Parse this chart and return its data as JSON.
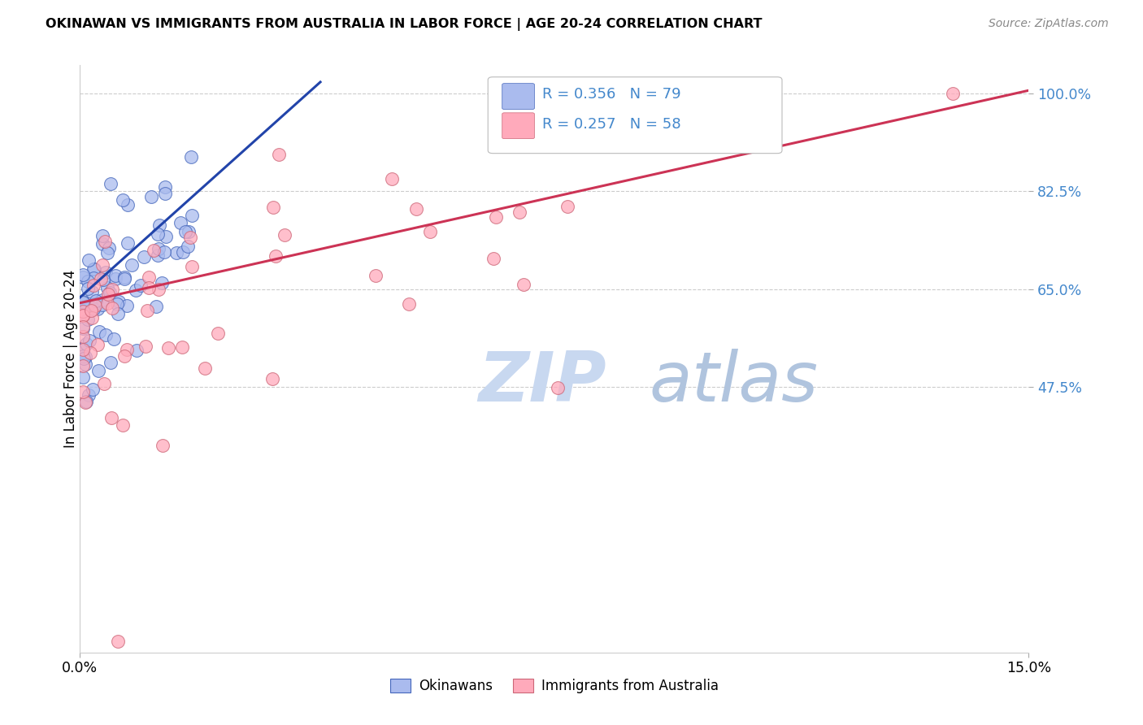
{
  "title": "OKINAWAN VS IMMIGRANTS FROM AUSTRALIA IN LABOR FORCE | AGE 20-24 CORRELATION CHART",
  "source": "Source: ZipAtlas.com",
  "ylabel": "In Labor Force | Age 20-24",
  "xlim": [
    0.0,
    0.15
  ],
  "ylim": [
    0.0,
    1.05
  ],
  "legend_r1": "R = 0.356",
  "legend_n1": "N = 79",
  "legend_r2": "R = 0.257",
  "legend_n2": "N = 58",
  "color_blue_fill": "#AABBEE",
  "color_blue_edge": "#4466BB",
  "color_pink_fill": "#FFAABB",
  "color_pink_edge": "#CC6677",
  "color_blue_line": "#2244AA",
  "color_pink_line": "#CC3355",
  "color_right_axis": "#4488CC",
  "ytick_vals": [
    0.475,
    0.65,
    0.825,
    1.0
  ],
  "ytick_labels": [
    "47.5%",
    "65.0%",
    "82.5%",
    "100.0%"
  ],
  "xtick_vals": [
    0.0,
    0.15
  ],
  "xtick_labels": [
    "0.0%",
    "15.0%"
  ],
  "blue_line_x": [
    0.0,
    0.038
  ],
  "blue_line_y": [
    0.635,
    1.02
  ],
  "pink_line_x": [
    0.0,
    0.15
  ],
  "pink_line_y": [
    0.625,
    1.005
  ]
}
